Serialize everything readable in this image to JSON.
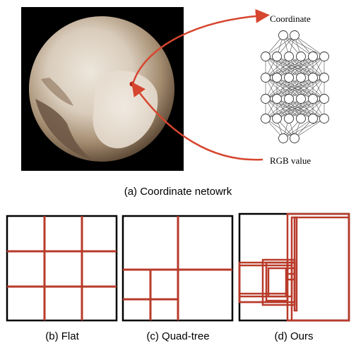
{
  "top_panel": {
    "image_label": "planet-photo",
    "network_output_label": "Coordinate",
    "network_input_label": "RGB value",
    "caption": "(a) Coordinate netowrk"
  },
  "bottom_panels": [
    {
      "caption": "(b) Flat"
    },
    {
      "caption": "(c) Quad-tree"
    },
    {
      "caption": "(d) Ours"
    }
  ],
  "colors": {
    "grid_line": "#b83a2a",
    "arrow": "#d6462f",
    "frame": "#000000",
    "photo_background": "#000000"
  }
}
